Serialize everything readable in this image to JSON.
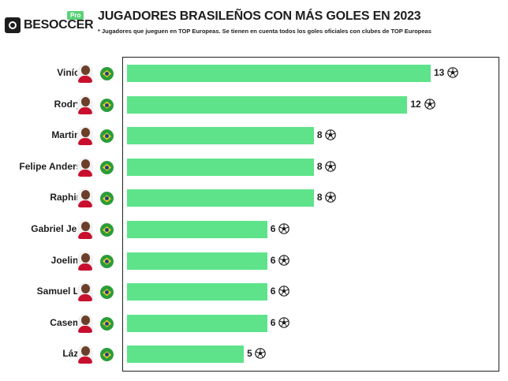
{
  "header": {
    "logo_text": "BESOCCER",
    "logo_badge": "Pro",
    "title": "JUGADORES BRASILEÑOS CON MÁS GOLES EN 2023",
    "subtitle": "* Jugadores que jueguen en TOP Europeas. Se tienen en cuenta todos los goles oficiales con clubes de TOP Europeas"
  },
  "colors": {
    "bar": "#5ee38a",
    "text": "#1d1d1d",
    "brand_green": "#5ad278"
  },
  "icons": {
    "flag": "brazil-flag-icon",
    "goal": "soccer-ball-icon"
  },
  "chart_data": {
    "type": "bar",
    "orientation": "horizontal",
    "title": "JUGADORES BRASILEÑOS CON MÁS GOLES EN 2023",
    "categories": [
      "Vinícius",
      "Rodrygo",
      "Martinelli",
      "Felipe Anderson",
      "Raphinha",
      "Gabriel Jesus",
      "Joelinton",
      "Samuel Lino",
      "Casemiro",
      "Lázaro"
    ],
    "values": [
      13,
      12,
      8,
      8,
      8,
      6,
      6,
      6,
      6,
      5
    ],
    "value_labels": [
      "13",
      "12",
      "8",
      "8",
      "8",
      "6",
      "6",
      "6",
      "6",
      "5"
    ],
    "xlim": [
      0,
      13
    ],
    "grid": false,
    "legend": "none"
  }
}
